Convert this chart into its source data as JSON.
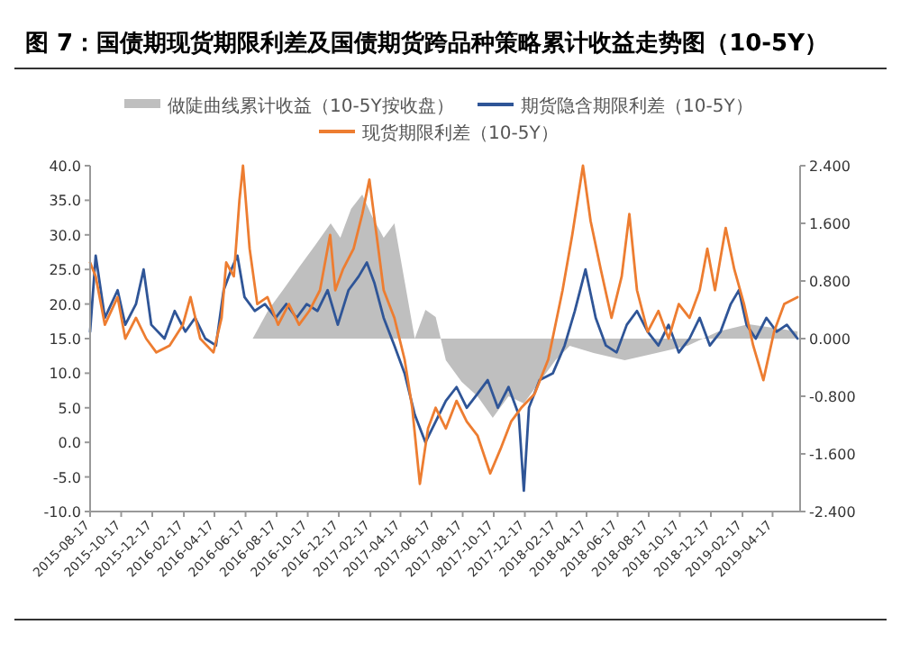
{
  "chart_data": {
    "type": "line",
    "title": "图 7：国债期现货期限利差及国债期货跨品种策略累计收益走势图（10-5Y）",
    "xlim": [
      "2015-08-17",
      "2019-06-10"
    ],
    "xticks": [
      "2015-08-17",
      "2015-10-17",
      "2015-12-17",
      "2016-02-17",
      "2016-04-17",
      "2016-06-17",
      "2016-08-17",
      "2016-10-17",
      "2016-12-17",
      "2017-02-17",
      "2017-04-17",
      "2017-06-17",
      "2017-08-17",
      "2017-10-17",
      "2017-12-17",
      "2018-02-17",
      "2018-04-17",
      "2018-06-17",
      "2018-08-17",
      "2018-10-17",
      "2018-12-17",
      "2019-02-17",
      "2019-04-17"
    ],
    "ylim": [
      -10,
      40
    ],
    "yticks": [
      {
        "value": 40,
        "label": "40.0"
      },
      {
        "value": 35,
        "label": "35.0"
      },
      {
        "value": 30,
        "label": "30.0"
      },
      {
        "value": 25,
        "label": "25.0"
      },
      {
        "value": 20,
        "label": "20.0"
      },
      {
        "value": 15,
        "label": "15.0"
      },
      {
        "value": 10,
        "label": "10.0"
      },
      {
        "value": 5,
        "label": "5.0"
      },
      {
        "value": 0,
        "label": "0.0"
      },
      {
        "value": -5,
        "label": "-5.0"
      },
      {
        "value": -10,
        "label": "-10.0"
      }
    ],
    "y2lim": [
      -2.4,
      2.4
    ],
    "y2ticks": [
      {
        "value": 2.4,
        "label": "2.400"
      },
      {
        "value": 1.6,
        "label": "1.600"
      },
      {
        "value": 0.8,
        "label": "0.800"
      },
      {
        "value": 0,
        "label": "0.000"
      },
      {
        "value": -0.8,
        "label": "-0.800"
      },
      {
        "value": -1.6,
        "label": "-1.600"
      },
      {
        "value": -2.4,
        "label": "-2.400"
      }
    ],
    "legend": "top",
    "grid": false,
    "marker": "none",
    "line_style": "solid",
    "series": [
      {
        "name": "做陡曲线累计收益（10-5Y按收盘）",
        "type": "area",
        "axis": "y2",
        "color": "#bfbfbf",
        "x": [
          "2015-08-17",
          "2016-07-01",
          "2016-08-01",
          "2016-09-01",
          "2016-10-01",
          "2016-11-01",
          "2016-12-01",
          "2016-12-20",
          "2017-01-10",
          "2017-02-01",
          "2017-02-20",
          "2017-03-15",
          "2017-04-05",
          "2017-04-25",
          "2017-05-15",
          "2017-06-05",
          "2017-06-25",
          "2017-07-15",
          "2017-08-15",
          "2017-09-15",
          "2017-10-15",
          "2017-11-15",
          "2017-12-15",
          "2018-01-15",
          "2018-02-15",
          "2018-03-15",
          "2018-05-01",
          "2018-07-01",
          "2018-09-01",
          "2018-11-01",
          "2019-01-01",
          "2019-03-01",
          "2019-06-05"
        ],
        "values": [
          0,
          0,
          0.4,
          0.7,
          1.0,
          1.3,
          1.6,
          1.4,
          1.8,
          2.0,
          1.7,
          1.4,
          1.6,
          0.8,
          0,
          0.4,
          0.3,
          -0.3,
          -0.6,
          -0.8,
          -1.1,
          -0.8,
          -0.9,
          -0.6,
          -0.3,
          -0.1,
          -0.2,
          -0.3,
          -0.2,
          -0.1,
          0.1,
          0.2,
          0.1
        ]
      },
      {
        "name": "期货隐含期限利差（10-5Y）",
        "color": "#2f5597",
        "x": [
          "2015-08-17",
          "2015-08-28",
          "2015-09-15",
          "2015-10-10",
          "2015-10-25",
          "2015-11-15",
          "2015-11-30",
          "2015-12-15",
          "2016-01-10",
          "2016-01-30",
          "2016-02-20",
          "2016-03-10",
          "2016-03-30",
          "2016-04-20",
          "2016-05-05",
          "2016-05-20",
          "2016-06-01",
          "2016-06-15",
          "2016-07-05",
          "2016-07-25",
          "2016-08-15",
          "2016-09-05",
          "2016-09-25",
          "2016-10-15",
          "2016-11-05",
          "2016-11-25",
          "2016-12-15",
          "2017-01-05",
          "2017-01-25",
          "2017-02-10",
          "2017-02-25",
          "2017-03-15",
          "2017-04-05",
          "2017-04-25",
          "2017-05-15",
          "2017-06-05",
          "2017-06-25",
          "2017-07-15",
          "2017-08-05",
          "2017-08-25",
          "2017-09-15",
          "2017-10-05",
          "2017-10-25",
          "2017-11-15",
          "2017-12-05",
          "2017-12-15",
          "2017-12-25",
          "2018-01-15",
          "2018-02-10",
          "2018-03-05",
          "2018-03-25",
          "2018-04-15",
          "2018-05-05",
          "2018-05-25",
          "2018-06-15",
          "2018-07-05",
          "2018-07-25",
          "2018-08-15",
          "2018-09-05",
          "2018-09-25",
          "2018-10-15",
          "2018-11-05",
          "2018-11-25",
          "2018-12-15",
          "2019-01-05",
          "2019-01-25",
          "2019-02-10",
          "2019-02-25",
          "2019-03-15",
          "2019-04-05",
          "2019-04-25",
          "2019-05-15",
          "2019-06-05"
        ],
        "values": [
          16,
          27,
          18,
          22,
          17,
          20,
          25,
          17,
          15,
          19,
          16,
          18,
          15,
          14,
          22,
          25,
          27,
          21,
          19,
          20,
          18,
          20,
          18,
          20,
          19,
          22,
          17,
          22,
          24,
          26,
          23,
          18,
          14,
          10,
          4,
          0,
          3,
          6,
          8,
          5,
          7,
          9,
          5,
          8,
          4,
          -7,
          5,
          9,
          10,
          14,
          19,
          25,
          18,
          14,
          13,
          17,
          19,
          16,
          14,
          17,
          13,
          15,
          18,
          14,
          16,
          20,
          22,
          17,
          15,
          18,
          16,
          17,
          15
        ]
      },
      {
        "name": "现货期限利差（10-5Y）",
        "color": "#ed7d31",
        "x": [
          "2015-08-17",
          "2015-08-28",
          "2015-09-15",
          "2015-10-10",
          "2015-10-25",
          "2015-11-15",
          "2015-12-05",
          "2015-12-25",
          "2016-01-20",
          "2016-02-15",
          "2016-03-01",
          "2016-03-20",
          "2016-04-15",
          "2016-05-01",
          "2016-05-10",
          "2016-05-25",
          "2016-06-05",
          "2016-06-12",
          "2016-06-25",
          "2016-07-10",
          "2016-07-30",
          "2016-08-20",
          "2016-09-10",
          "2016-09-30",
          "2016-10-20",
          "2016-11-10",
          "2016-11-30",
          "2016-12-10",
          "2016-12-25",
          "2017-01-15",
          "2017-02-01",
          "2017-02-15",
          "2017-03-01",
          "2017-03-15",
          "2017-04-05",
          "2017-04-25",
          "2017-05-10",
          "2017-05-25",
          "2017-06-10",
          "2017-06-25",
          "2017-07-15",
          "2017-08-05",
          "2017-08-25",
          "2017-09-15",
          "2017-10-10",
          "2017-10-30",
          "2017-11-20",
          "2017-12-10",
          "2018-01-05",
          "2018-02-01",
          "2018-03-01",
          "2018-03-20",
          "2018-04-10",
          "2018-04-25",
          "2018-05-15",
          "2018-06-05",
          "2018-06-25",
          "2018-07-10",
          "2018-07-25",
          "2018-08-15",
          "2018-09-05",
          "2018-09-25",
          "2018-10-15",
          "2018-11-05",
          "2018-11-25",
          "2018-12-10",
          "2018-12-25",
          "2019-01-15",
          "2019-02-01",
          "2019-02-20",
          "2019-03-10",
          "2019-03-30",
          "2019-04-20",
          "2019-05-10",
          "2019-06-05"
        ],
        "values": [
          26,
          24,
          17,
          21,
          15,
          18,
          15,
          13,
          14,
          17,
          21,
          15,
          13,
          18,
          26,
          24,
          35,
          40,
          28,
          20,
          21,
          17,
          20,
          17,
          19,
          22,
          30,
          22,
          25,
          28,
          33,
          38,
          30,
          22,
          18,
          12,
          5,
          -6,
          2,
          5,
          2,
          6,
          3,
          1,
          -4.5,
          -1,
          3,
          5,
          7,
          12,
          22,
          30,
          40,
          32,
          25,
          18,
          24,
          33,
          22,
          16,
          19,
          15,
          20,
          18,
          22,
          28,
          22,
          31,
          25,
          20,
          14,
          9,
          16,
          20,
          21
        ]
      }
    ]
  }
}
